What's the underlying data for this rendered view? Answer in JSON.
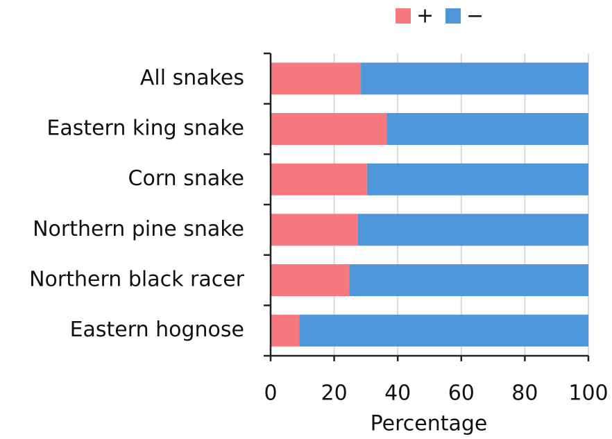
{
  "chart_data": {
    "type": "stacked-bar-horizontal",
    "categories": [
      "All snakes",
      "Eastern king snake",
      "Corn snake",
      "Northern pine snake",
      "Northern black racer",
      "Eastern hognose"
    ],
    "series": [
      {
        "name": "+",
        "color": "#f8787f",
        "values": [
          28.4,
          36.5,
          30.3,
          27.5,
          24.7,
          9
        ]
      },
      {
        "name": "−",
        "color": "#5096db",
        "values": [
          71.6,
          63.5,
          69.7,
          72.5,
          75.3,
          91
        ]
      }
    ],
    "xlabel": "Percentage",
    "xlim": [
      0,
      100
    ],
    "xticks": [
      0,
      20,
      40,
      60,
      80,
      100
    ],
    "grid": true
  }
}
